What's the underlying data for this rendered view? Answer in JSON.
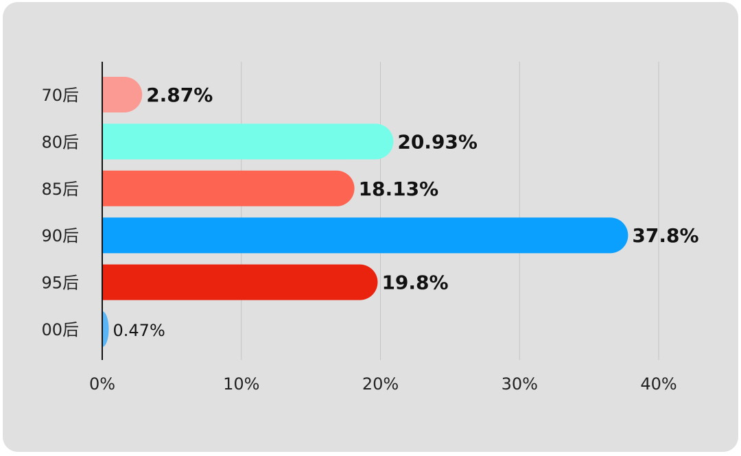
{
  "chart_data": {
    "type": "bar",
    "orientation": "horizontal",
    "title": "",
    "xlabel": "",
    "ylabel": "",
    "categories": [
      "70后",
      "80后",
      "85后",
      "90后",
      "95后",
      "00后"
    ],
    "values": [
      2.87,
      20.93,
      18.13,
      37.8,
      19.8,
      0.47
    ],
    "value_labels": [
      "2.87%",
      "20.93%",
      "18.13%",
      "37.8%",
      "19.8%",
      "0.47%"
    ],
    "bar_colors": [
      "#fb9a92",
      "#76fde9",
      "#fe6452",
      "#0ba0fd",
      "#ea230f",
      "#5ab4f5"
    ],
    "xlim": [
      0,
      40
    ],
    "xticks": [
      0,
      10,
      20,
      30,
      40
    ],
    "xtick_labels": [
      "0%",
      "10%",
      "20%",
      "30%",
      "40%"
    ],
    "grid": true,
    "legend": "none"
  }
}
